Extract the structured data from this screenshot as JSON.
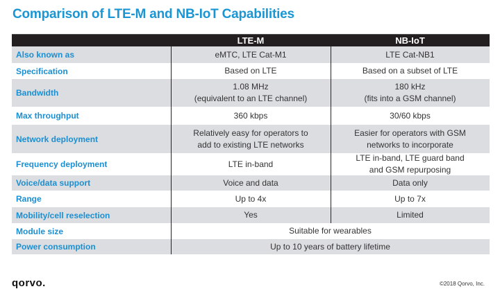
{
  "title": "Comparison of LTE-M and NB-IoT Capabilities",
  "columns": [
    "",
    "LTE-M",
    "NB-IoT"
  ],
  "rows": [
    {
      "label": "Also known as",
      "lte_m": "eMTC, LTE Cat-M1",
      "nb_iot": "LTE Cat-NB1"
    },
    {
      "label": "Specification",
      "lte_m": "Based on LTE",
      "nb_iot": "Based on a subset of LTE"
    },
    {
      "label": "Bandwidth",
      "lte_m": "1.08 MHz\n(equivalent to an LTE channel)",
      "nb_iot": "180 kHz\n(fits into a GSM channel)"
    },
    {
      "label": "Max throughput",
      "lte_m": "360 kbps",
      "nb_iot": "30/60 kbps"
    },
    {
      "label": "Network deployment",
      "lte_m": "Relatively easy for operators to\nadd to existing LTE networks",
      "nb_iot": "Easier for operators with GSM\nnetworks to incorporate"
    },
    {
      "label": "Frequency deployment",
      "lte_m": "LTE in-band",
      "nb_iot": "LTE in-band, LTE guard band\nand GSM repurposing"
    },
    {
      "label": "Voice/data support",
      "lte_m": "Voice and data",
      "nb_iot": "Data only"
    },
    {
      "label": "Range",
      "lte_m": "Up to 4x",
      "nb_iot": "Up to 7x"
    },
    {
      "label": "Mobility/cell reselection",
      "lte_m": "Yes",
      "nb_iot": "Limited"
    },
    {
      "label": "Module size",
      "both": "Suitable for wearables"
    },
    {
      "label": "Power consumption",
      "both": "Up to 10 years of battery lifetime"
    }
  ],
  "footer": {
    "logo": "qorvo.",
    "copyright": "©2018 Qorvo, Inc."
  },
  "colors": {
    "accent": "#1a96d4",
    "header_bg": "#231f20",
    "row_alt": "#dcdde1"
  }
}
